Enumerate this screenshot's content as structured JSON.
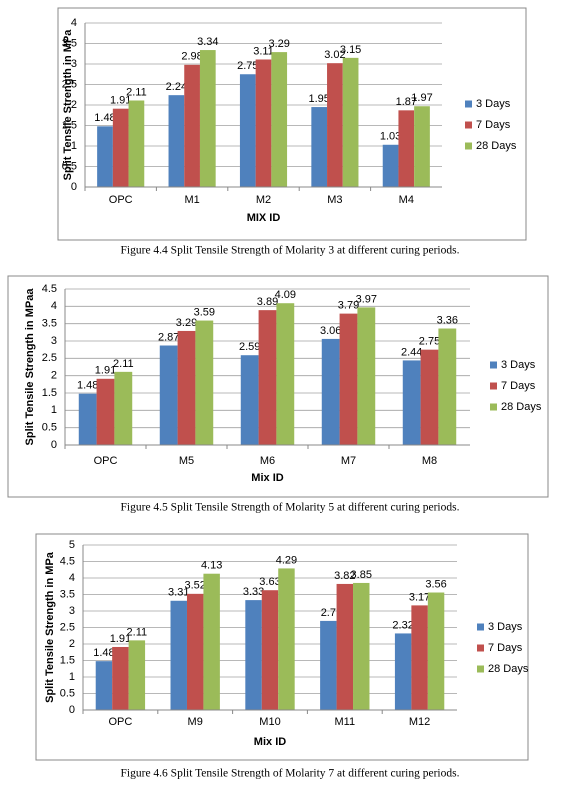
{
  "chart_data": [
    {
      "type": "bar",
      "y_label": "Split Tensile Strength in MPa",
      "x_label": "MIX ID",
      "caption": "Figure 4.4 Split Tensile Strength of Molarity 3 at different curing periods.",
      "categories": [
        "OPC",
        "M1",
        "M2",
        "M3",
        "M4"
      ],
      "series": [
        {
          "name": "3 Days",
          "color": "#4f81bd",
          "values": [
            1.48,
            2.24,
            2.75,
            1.95,
            1.03
          ]
        },
        {
          "name": "7 Days",
          "color": "#c0504d",
          "values": [
            1.91,
            2.98,
            3.11,
            3.02,
            1.87
          ]
        },
        {
          "name": "28 Days",
          "color": "#9bbb59",
          "values": [
            2.11,
            3.34,
            3.29,
            3.15,
            1.97
          ]
        }
      ],
      "ylim": [
        0,
        4
      ],
      "yticks": [
        0,
        0.5,
        1,
        1.5,
        2,
        2.5,
        3,
        3.5,
        4
      ],
      "grid": true,
      "legend": "right"
    },
    {
      "type": "bar",
      "y_label": "Split Tensile Strength in MPaa",
      "x_label": "Mix ID",
      "caption": "Figure 4.5 Split Tensile Strength of Molarity 5 at different curing periods.",
      "categories": [
        "OPC",
        "M5",
        "M6",
        "M7",
        "M8"
      ],
      "series": [
        {
          "name": "3 Days",
          "color": "#4f81bd",
          "values": [
            1.48,
            2.87,
            2.59,
            3.06,
            2.44
          ]
        },
        {
          "name": "7 Days",
          "color": "#c0504d",
          "values": [
            1.91,
            3.29,
            3.89,
            3.79,
            2.75
          ]
        },
        {
          "name": "28 Days",
          "color": "#9bbb59",
          "values": [
            2.11,
            3.59,
            4.09,
            3.97,
            3.36
          ]
        }
      ],
      "ylim": [
        0,
        4.5
      ],
      "yticks": [
        0,
        0.5,
        1,
        1.5,
        2,
        2.5,
        3,
        3.5,
        4,
        4.5
      ],
      "grid": true,
      "legend": "right"
    },
    {
      "type": "bar",
      "y_label": "Split Tensile Strength in MPa",
      "x_label": "Mix ID",
      "caption": "Figure 4.6 Split Tensile Strength of Molarity 7 at different curing periods.",
      "categories": [
        "OPC",
        "M9",
        "M10",
        "M11",
        "M12"
      ],
      "series": [
        {
          "name": "3 Days",
          "color": "#4f81bd",
          "values": [
            1.48,
            3.31,
            3.33,
            2.7,
            2.32
          ]
        },
        {
          "name": "7 Days",
          "color": "#c0504d",
          "values": [
            1.91,
            3.52,
            3.63,
            3.82,
            3.17
          ]
        },
        {
          "name": "28 Days",
          "color": "#9bbb59",
          "values": [
            2.11,
            4.13,
            4.29,
            3.85,
            3.56
          ]
        }
      ],
      "ylim": [
        0,
        5
      ],
      "yticks": [
        0,
        0.5,
        1,
        1.5,
        2,
        2.5,
        3,
        3.5,
        4,
        4.5,
        5
      ],
      "grid": true,
      "legend": "right"
    }
  ]
}
